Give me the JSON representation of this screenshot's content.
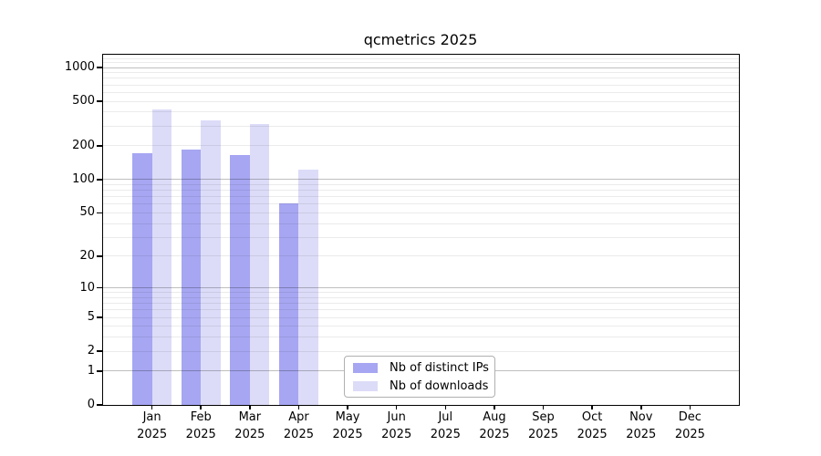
{
  "chart_data": {
    "type": "bar",
    "title": "qcmetrics 2025",
    "categories": [
      {
        "month": "Jan",
        "year": "2025"
      },
      {
        "month": "Feb",
        "year": "2025"
      },
      {
        "month": "Mar",
        "year": "2025"
      },
      {
        "month": "Apr",
        "year": "2025"
      },
      {
        "month": "May",
        "year": "2025"
      },
      {
        "month": "Jun",
        "year": "2025"
      },
      {
        "month": "Jul",
        "year": "2025"
      },
      {
        "month": "Aug",
        "year": "2025"
      },
      {
        "month": "Sep",
        "year": "2025"
      },
      {
        "month": "Oct",
        "year": "2025"
      },
      {
        "month": "Nov",
        "year": "2025"
      },
      {
        "month": "Dec",
        "year": "2025"
      }
    ],
    "series": [
      {
        "name": "Nb of distinct IPs",
        "color": "#a6a6f2",
        "values": [
          173,
          185,
          166,
          61,
          0,
          0,
          0,
          0,
          0,
          0,
          0,
          0
        ]
      },
      {
        "name": "Nb of downloads",
        "color": "#dcdcf8",
        "values": [
          422,
          340,
          312,
          123,
          0,
          0,
          0,
          0,
          0,
          0,
          0,
          0
        ]
      }
    ],
    "y_ticks": [
      0,
      1,
      2,
      5,
      10,
      20,
      50,
      100,
      200,
      500,
      1000
    ],
    "yscale": "log10(1+x)",
    "ylim": [
      0,
      1300
    ],
    "grid": "horizontal",
    "legend_position": "bottom-center",
    "colors": {
      "axis": "#000000",
      "major_grid": "#c3c3c3",
      "minor_grid": "#ebebeb",
      "legend_border": "#b0b0b0",
      "background": "#ffffff"
    }
  }
}
